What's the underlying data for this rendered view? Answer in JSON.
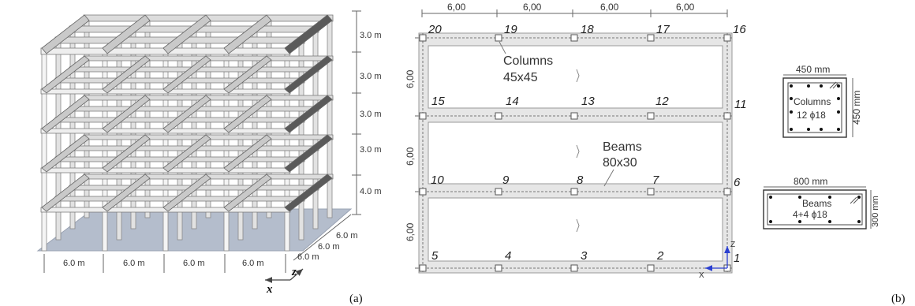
{
  "panel_a": {
    "label": "(a)",
    "storey_heights": [
      "3.0 m",
      "3.0 m",
      "3.0 m",
      "3.0 m",
      "4.0 m"
    ],
    "x_spans": [
      "6.0 m",
      "6.0 m",
      "6.0 m",
      "6.0 m"
    ],
    "z_spans": [
      "6.0 m",
      "6.0 m",
      "6.0 m"
    ],
    "axis_x": "x",
    "axis_z": "z"
  },
  "panel_b": {
    "label": "(b)",
    "top_spans": [
      "6,00",
      "6,00",
      "6,00",
      "6,00"
    ],
    "side_spans": [
      "6,00",
      "6,00",
      "6,00"
    ],
    "node_rows": [
      [
        "20",
        "19",
        "18",
        "17",
        "16"
      ],
      [
        "15",
        "14",
        "13",
        "12",
        "11"
      ],
      [
        "10",
        "9",
        "8",
        "7",
        "6"
      ],
      [
        "5",
        "4",
        "3",
        "2",
        "1"
      ]
    ],
    "columns_callout": [
      "Columns",
      "45x45"
    ],
    "beams_callout": [
      "Beams",
      "80x30"
    ],
    "axis_x": "X",
    "axis_z": "Z"
  },
  "column_section": {
    "width": "450 mm",
    "height": "450 mm",
    "title": "Columns",
    "rebar": "12 ϕ18"
  },
  "beam_section": {
    "width": "800 mm",
    "height": "300 mm",
    "title": "Beams",
    "rebar": "4+4 ϕ18"
  }
}
